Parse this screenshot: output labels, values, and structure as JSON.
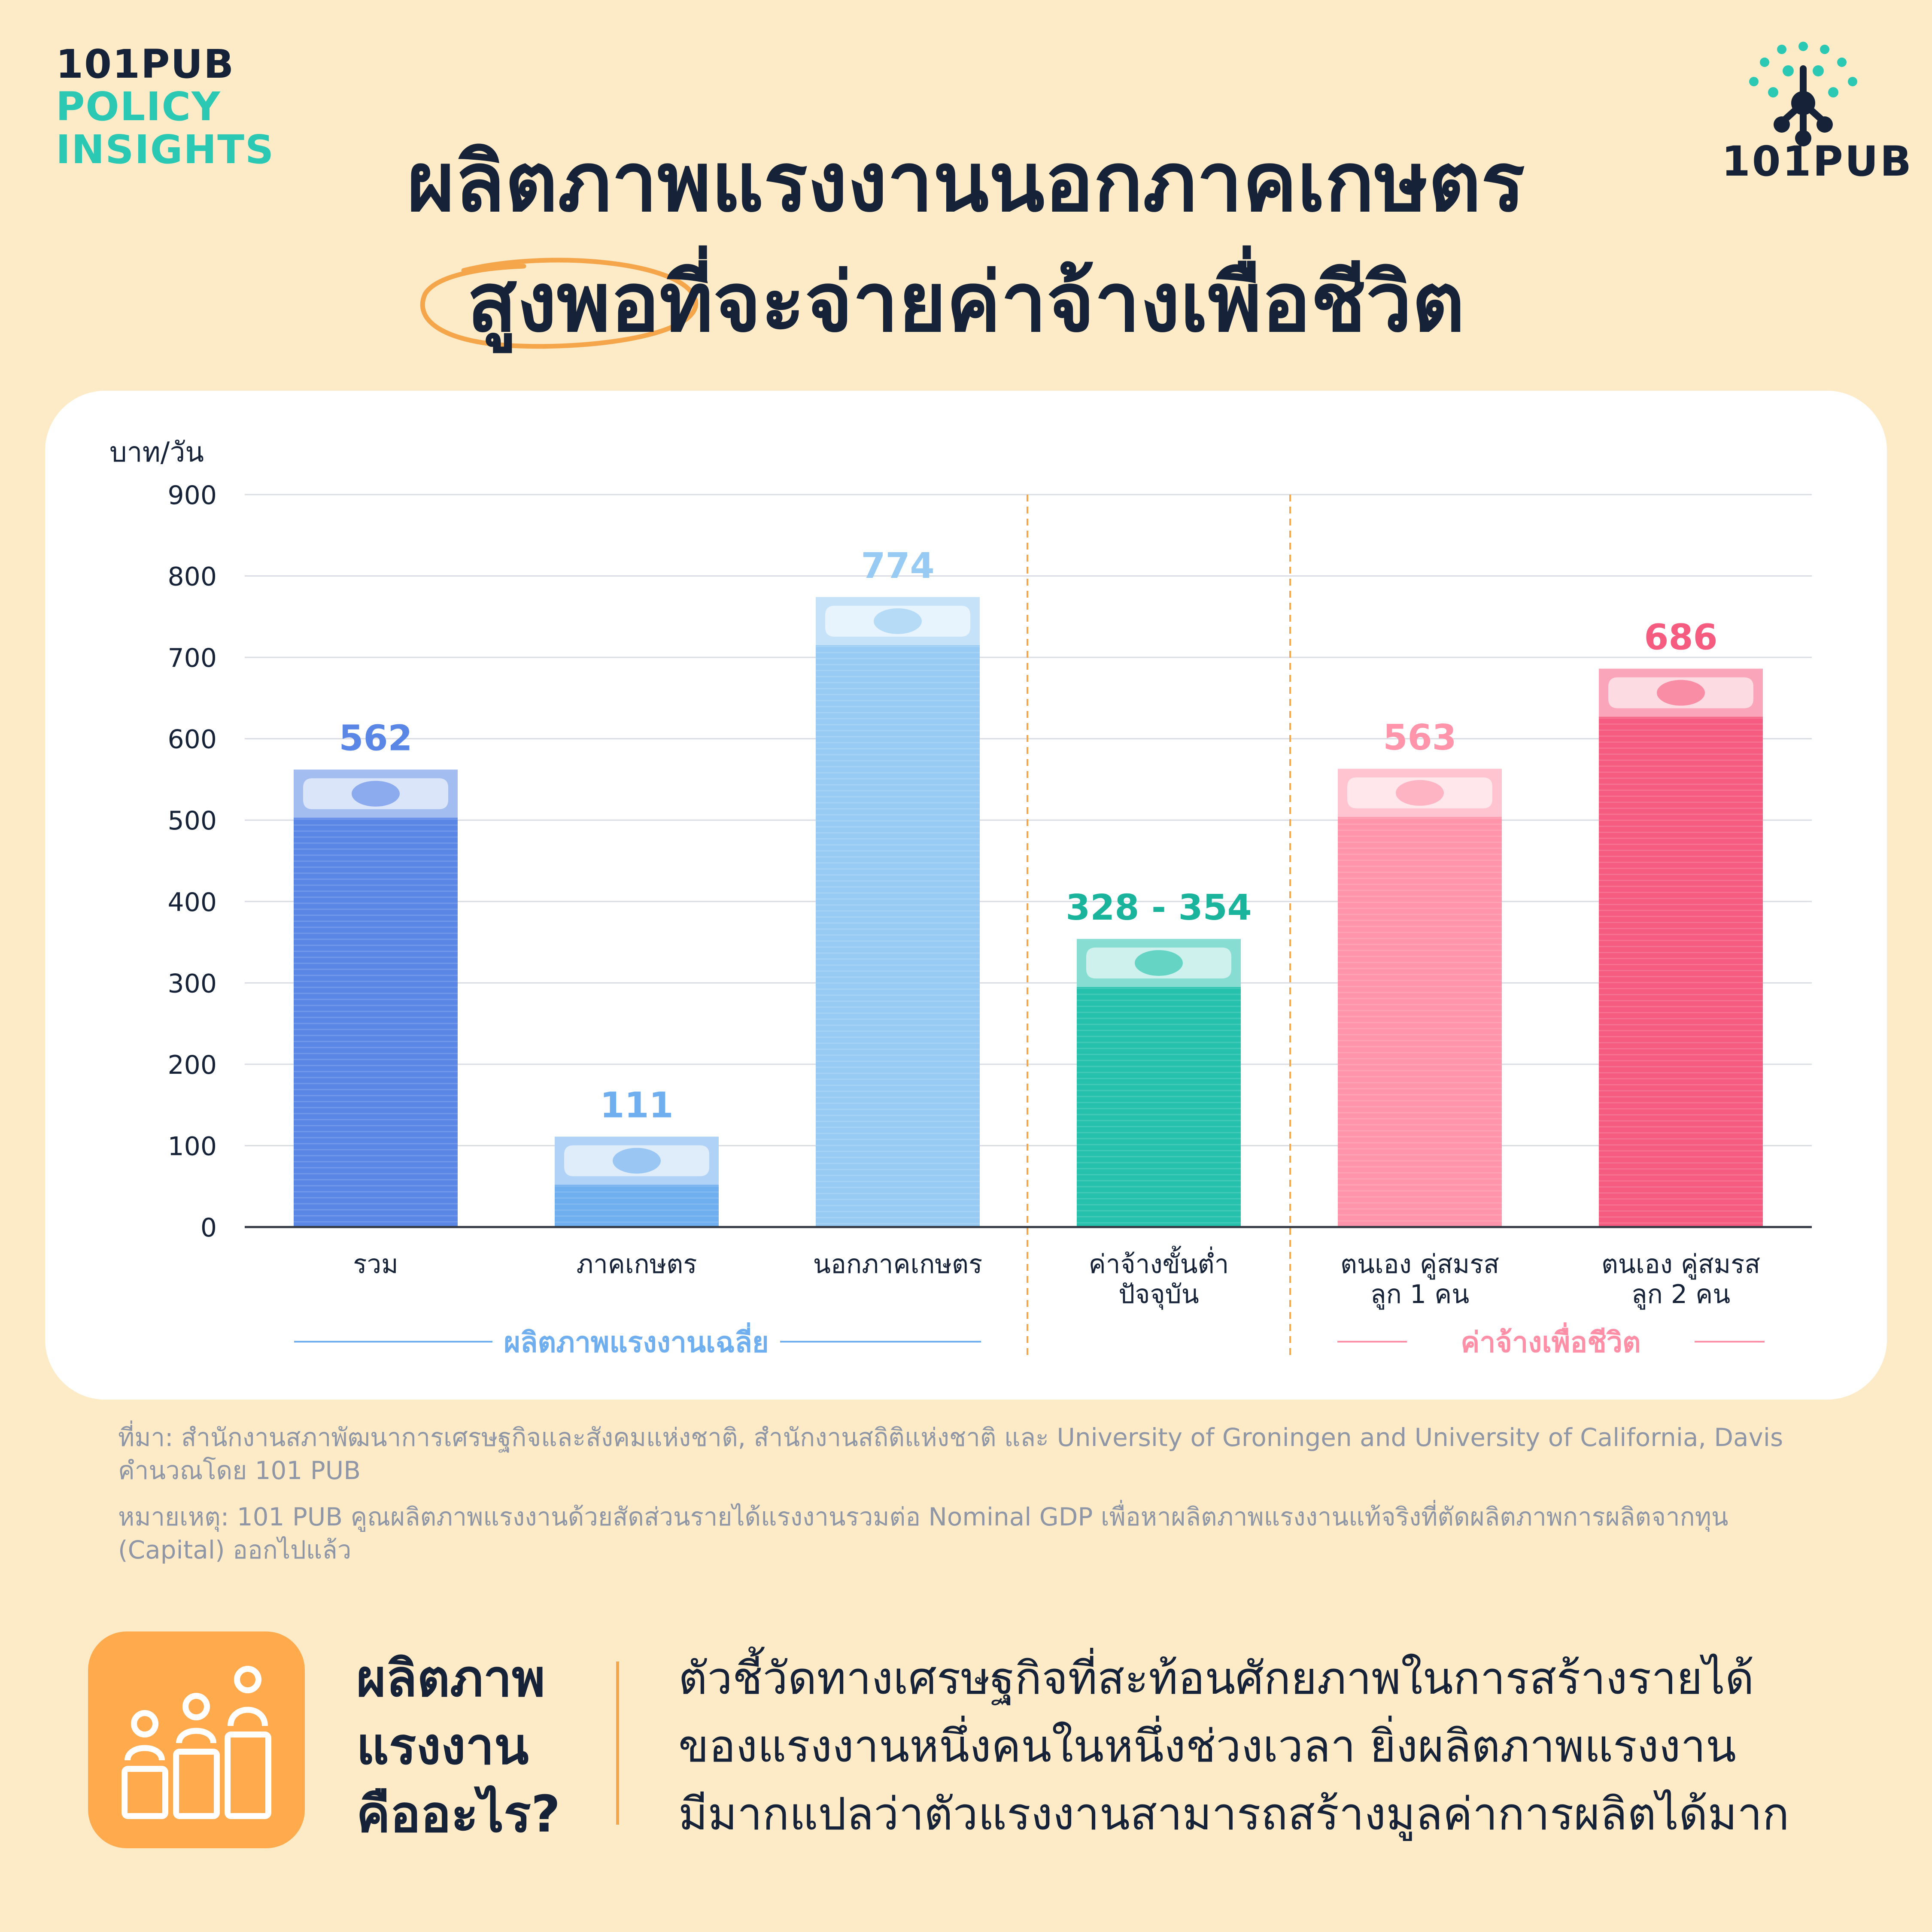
{
  "brand": {
    "line1": "101PUB",
    "line2": "POLICY",
    "line3": "INSIGHTS"
  },
  "logo": {
    "text": "101PUB",
    "icon": "network-tree-icon"
  },
  "title": {
    "line1": "ผลิตภาพแรงงานนอกภาคเกษตร",
    "line2": "สูงพอที่จะจ่ายค่าจ้างเพื่อชีวิต"
  },
  "colors": {
    "accent_teal": "#2BC9B4",
    "blue_dark": "#5A87E6",
    "blue_mid": "#6FAEEF",
    "blue_light": "#97CBF4",
    "teal": "#25C1AC",
    "pink_light": "#FF94AA",
    "pink": "#F55C7F",
    "orange": "#FFAA4C"
  },
  "chart_data": {
    "type": "bar",
    "ylabel": "บาท/วัน",
    "ylim": [
      0,
      900
    ],
    "yticks": [
      0,
      100,
      200,
      300,
      400,
      500,
      600,
      700,
      800,
      900
    ],
    "grid": true,
    "bars": [
      {
        "category": [
          "รวม"
        ],
        "value": 562,
        "label": "562",
        "color": "#5A87E6",
        "label_color": "#5A87E6"
      },
      {
        "category": [
          "ภาคเกษตร"
        ],
        "value": 111,
        "label": "111",
        "color": "#6FAEEF",
        "label_color": "#6FAEEF"
      },
      {
        "category": [
          "นอกภาคเกษตร"
        ],
        "value": 774,
        "label": "774",
        "color": "#97CBF4",
        "label_color": "#97CBF4"
      },
      {
        "category": [
          "ค่าจ้างขั้นต่ำ",
          "ปัจจุบัน"
        ],
        "value": 354,
        "range": [
          328,
          354
        ],
        "label": "328 - 354",
        "color": "#25C1AC",
        "label_color": "#1AB39C"
      },
      {
        "category": [
          "ตนเอง คู่สมรส",
          "ลูก 1 คน"
        ],
        "value": 563,
        "label": "563",
        "color": "#FF94AA",
        "label_color": "#FF94AA"
      },
      {
        "category": [
          "ตนเอง คู่สมรส",
          "ลูก 2 คน"
        ],
        "value": 686,
        "label": "686",
        "color": "#F55C7F",
        "label_color": "#F55C7F"
      }
    ],
    "groups": [
      {
        "label": "ผลิตภาพแรงงานเฉลี่ย",
        "color": "#6FAEEF"
      },
      {
        "label": "ค่าจ้างเพื่อชีวิต",
        "color": "#FF8FA6"
      }
    ]
  },
  "source": {
    "line1": "ที่มา: สำนักงานสภาพัฒนาการเศรษฐกิจและสังคมแห่งชาติ, สำนักงานสถิติแห่งชาติ และ University of Groningen and University of California, Davis",
    "line2": "คำนวณโดย 101 PUB",
    "note1": "หมายเหตุ: 101 PUB คูณผลิตภาพแรงงานด้วยสัดส่วนรายได้แรงงานรวมต่อ Nominal GDP เพื่อหาผลิตภาพแรงงานแท้จริงที่ตัดผลิตภาพการผลิตจากทุน",
    "note2": "(Capital) ออกไปแล้ว"
  },
  "definition": {
    "icon": "people-bars-icon",
    "term1": "ผลิตภาพ",
    "term2": "แรงงาน",
    "term3": "คืออะไร?",
    "text1": "ตัวชี้วัดทางเศรษฐกิจที่สะท้อนศักยภาพในการสร้างรายได้",
    "text2": "ของแรงงานหนึ่งคนในหนึ่งช่วงเวลา ยิ่งผลิตภาพแรงงาน",
    "text3": "มีมากแปลว่าตัวแรงงานสามารถสร้างมูลค่าการผลิตได้มาก"
  }
}
